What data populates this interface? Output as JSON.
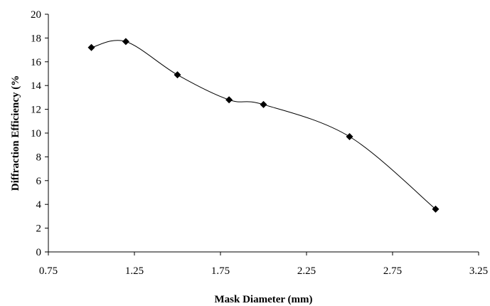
{
  "chart_data": {
    "type": "line",
    "title": "",
    "xlabel": "Mask Diameter (mm)",
    "ylabel": "Diffraction Efficiency (%",
    "xlim": [
      0.75,
      3.25
    ],
    "ylim": [
      0,
      20
    ],
    "x_ticks": [
      "0.75",
      "1.25",
      "1.75",
      "2.25",
      "2.75",
      "3.25"
    ],
    "y_ticks": [
      "0",
      "2",
      "4",
      "6",
      "8",
      "10",
      "12",
      "14",
      "16",
      "18",
      "20"
    ],
    "smooth": true,
    "marker": "diamond",
    "grid": false,
    "legend": "none",
    "line_color": "#000000",
    "series": [
      {
        "x": [
          1.0,
          1.2,
          1.5,
          1.8,
          2.0,
          2.5,
          3.0
        ],
        "y": [
          17.2,
          17.7,
          14.9,
          12.8,
          12.4,
          9.7,
          3.6
        ]
      }
    ]
  }
}
